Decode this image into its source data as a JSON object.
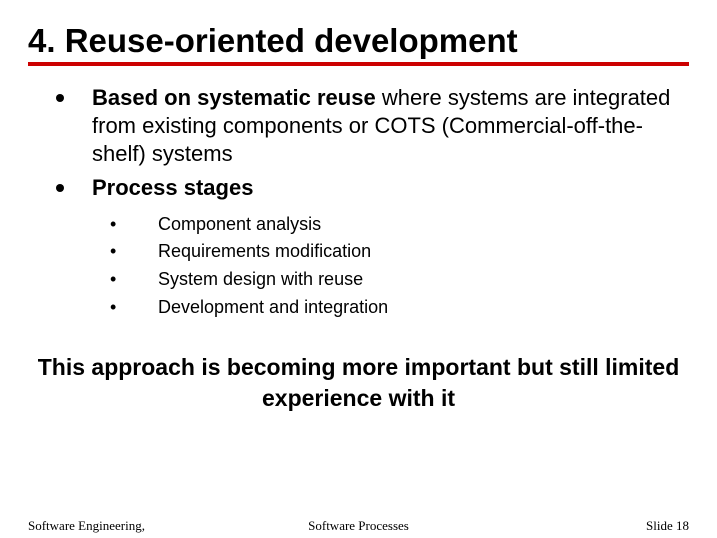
{
  "title": "4. Reuse-oriented development",
  "colors": {
    "rule": "#cc0000",
    "text": "#000000",
    "background": "#ffffff"
  },
  "bullets": [
    {
      "bold_lead": "Based on systematic reuse",
      "rest": " where systems are integrated from existing components or COTS (Commercial-off-the-shelf) systems"
    },
    {
      "bold_lead": "Process stages",
      "rest": ""
    }
  ],
  "sub_bullets": [
    "Component analysis",
    "Requirements modification",
    "System design with reuse",
    "Development and integration"
  ],
  "closing": "This approach is becoming more important but still limited experience with it",
  "footer": {
    "left": "Software Engineering,",
    "center": "Software Processes",
    "right": "Slide 18"
  },
  "typography": {
    "title_fontsize": 33,
    "bullet_fontsize": 22,
    "sub_bullet_fontsize": 18,
    "closing_fontsize": 23,
    "footer_fontsize": 13,
    "title_weight": "bold",
    "closing_weight": "bold",
    "body_family": "Arial",
    "footer_family": "Times New Roman"
  }
}
